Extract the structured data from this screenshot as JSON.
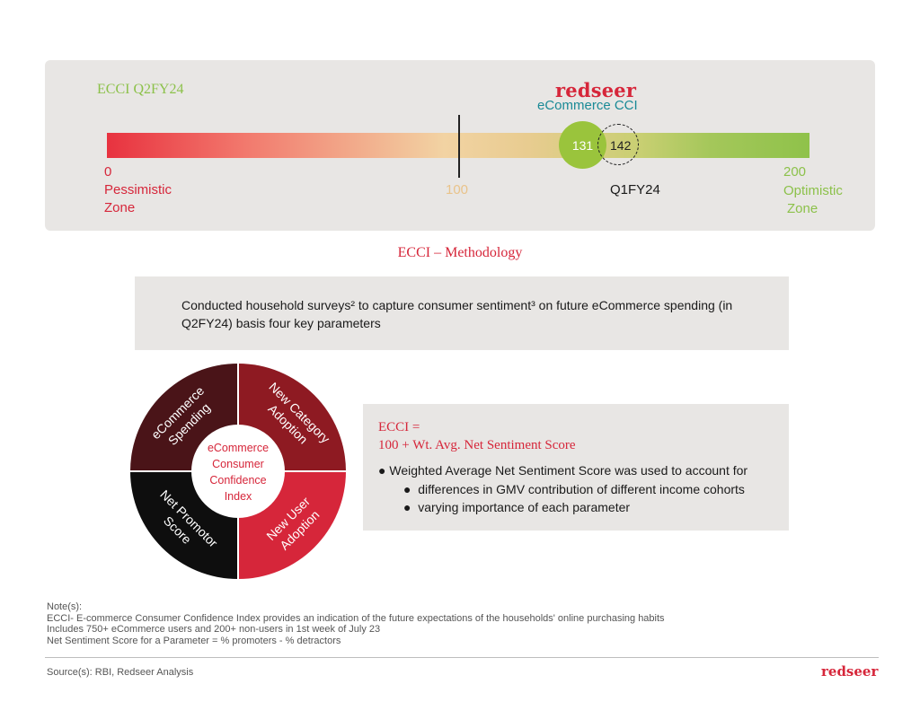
{
  "gauge": {
    "period_label": "ECCI Q2FY24",
    "brand": "redseer",
    "index_name": "eCommerce CCI",
    "scale_min": 0,
    "scale_mid": 100,
    "scale_max": 200,
    "min_label": "0",
    "mid_label": "100",
    "max_label": "200",
    "pessimistic_zone": [
      "Pessimistic",
      "Zone"
    ],
    "optimistic_zone": [
      "Optimistic",
      "Zone"
    ],
    "current_value": 131,
    "current_value_label": "131",
    "previous_value": 142,
    "previous_value_label": "142",
    "previous_period_label": "Q1FY24"
  },
  "methodology": {
    "title": "ECCI – Methodology",
    "survey_text": "Conducted household surveys² to capture consumer sentiment³ on future eCommerce spending (in Q2FY24) basis four key parameters"
  },
  "donut": {
    "center": [
      "eCommerce",
      "Consumer",
      "Confidence",
      "Index"
    ],
    "segments": [
      {
        "lines": [
          "eCommerce",
          "Spending"
        ],
        "color": "#4a1418"
      },
      {
        "lines": [
          "New Category",
          "Adoption"
        ],
        "color": "#8e1a22"
      },
      {
        "lines": [
          "New User",
          "Adoption"
        ],
        "color": "#d6263a"
      },
      {
        "lines": [
          "Net Promotor",
          "Score"
        ],
        "color": "#0e0e0e"
      }
    ]
  },
  "formula": {
    "title_line1": "ECCI =",
    "title_line2": "100 + Wt. Avg. Net Sentiment Score",
    "bullet_main": "Weighted Average Net Sentiment Score was used to account for",
    "sub_bullets": [
      "differences in GMV contribution of different income cohorts",
      "varying importance of each parameter"
    ]
  },
  "notes": [
    "Note(s):",
    "ECCI- E-commerce Consumer Confidence Index provides an indication of the future expectations of the households' online purchasing habits",
    "Includes 750+ eCommerce users and 200+ non-users in 1st week of July 23",
    "Net Sentiment Score for a Parameter = % promoters - % detractors"
  ],
  "source": "Source(s): RBI, Redseer Analysis",
  "footer_brand": "redseer",
  "colors": {
    "accent_red": "#d6263a",
    "accent_green": "#8cc14a",
    "teal": "#1a8a96",
    "panel": "#e8e6e4"
  }
}
